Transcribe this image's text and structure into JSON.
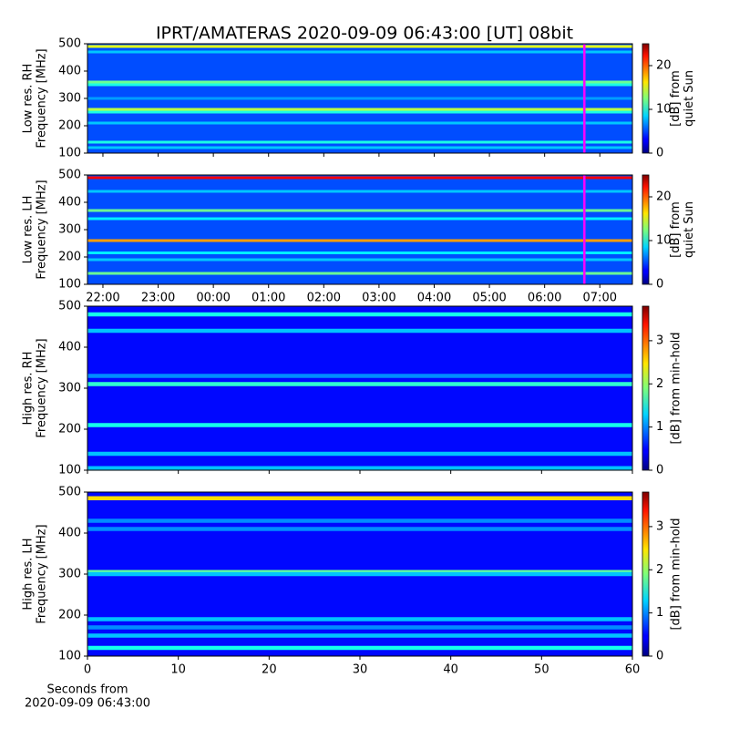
{
  "chart_data": [
    {
      "type": "heatmap",
      "title": "IPRT/AMATERAS 2020-09-09 06:43:00 [UT]   08bit",
      "ylabel": [
        "Low res. RH",
        "Frequency [MHz]"
      ],
      "ylim": [
        100,
        500
      ],
      "yticks": [
        100,
        200,
        300,
        400,
        500
      ],
      "xlim": [
        21.72,
        31.59
      ],
      "show_xticklabels": false,
      "xticks": [
        {
          "value": 22,
          "label": "22:00"
        },
        {
          "value": 23,
          "label": "23:00"
        },
        {
          "value": 24,
          "label": "00:00"
        },
        {
          "value": 25,
          "label": "01:00"
        },
        {
          "value": 26,
          "label": "02:00"
        },
        {
          "value": 27,
          "label": "03:00"
        },
        {
          "value": 28,
          "label": "04:00"
        },
        {
          "value": 29,
          "label": "05:00"
        },
        {
          "value": 30,
          "label": "06:00"
        },
        {
          "value": 31,
          "label": "07:00"
        }
      ],
      "clim": [
        0,
        25
      ],
      "cticks": [
        0,
        10,
        20
      ],
      "clabel": [
        "[dB] from",
        "quiet Sun"
      ],
      "colormap": "jet",
      "background": 5,
      "marker_x": 30.72,
      "marker_color": "#ff00ff",
      "bands": [
        {
          "freq": 490,
          "db": 15
        },
        {
          "freq": 470,
          "db": 8
        },
        {
          "freq": 360,
          "db": 12
        },
        {
          "freq": 350,
          "db": 10
        },
        {
          "freq": 300,
          "db": 7
        },
        {
          "freq": 260,
          "db": 14
        },
        {
          "freq": 250,
          "db": 10
        },
        {
          "freq": 210,
          "db": 8
        },
        {
          "freq": 140,
          "db": 10
        },
        {
          "freq": 120,
          "db": 8
        }
      ]
    },
    {
      "type": "heatmap",
      "ylabel": [
        "Low res. LH",
        "Frequency [MHz]"
      ],
      "ylim": [
        100,
        500
      ],
      "yticks": [
        100,
        200,
        300,
        400,
        500
      ],
      "xlim": [
        21.72,
        31.59
      ],
      "show_xticklabels": true,
      "xticks": [
        {
          "value": 22,
          "label": "22:00"
        },
        {
          "value": 23,
          "label": "23:00"
        },
        {
          "value": 24,
          "label": "00:00"
        },
        {
          "value": 25,
          "label": "01:00"
        },
        {
          "value": 26,
          "label": "02:00"
        },
        {
          "value": 27,
          "label": "03:00"
        },
        {
          "value": 28,
          "label": "04:00"
        },
        {
          "value": 29,
          "label": "05:00"
        },
        {
          "value": 30,
          "label": "06:00"
        },
        {
          "value": 31,
          "label": "07:00"
        }
      ],
      "clim": [
        0,
        25
      ],
      "cticks": [
        0,
        10,
        20
      ],
      "clabel": [
        "[dB] from",
        "quiet Sun"
      ],
      "colormap": "jet",
      "background": 5,
      "marker_x": 30.72,
      "marker_color": "#ff00ff",
      "bands": [
        {
          "freq": 490,
          "db": 22
        },
        {
          "freq": 440,
          "db": 8
        },
        {
          "freq": 370,
          "db": 12
        },
        {
          "freq": 340,
          "db": 9
        },
        {
          "freq": 260,
          "db": 18
        },
        {
          "freq": 215,
          "db": 9
        },
        {
          "freq": 190,
          "db": 8
        },
        {
          "freq": 140,
          "db": 12
        }
      ]
    },
    {
      "type": "heatmap",
      "ylabel": [
        "High res. RH",
        "Frequency [MHz]"
      ],
      "ylim": [
        100,
        500
      ],
      "yticks": [
        100,
        200,
        300,
        400,
        500
      ],
      "xlim": [
        0,
        60
      ],
      "xticks": [
        0,
        10,
        20,
        30,
        40,
        50,
        60
      ],
      "show_xticklabels": false,
      "clim": [
        0,
        3.8
      ],
      "cticks": [
        0,
        1,
        2,
        3
      ],
      "clabel": [
        "[dB] from min-hold"
      ],
      "colormap": "jet",
      "background": 0.5,
      "bands": [
        {
          "freq": 480,
          "db": 1.5
        },
        {
          "freq": 440,
          "db": 1.2
        },
        {
          "freq": 330,
          "db": 1.0
        },
        {
          "freq": 310,
          "db": 1.6
        },
        {
          "freq": 210,
          "db": 1.5
        },
        {
          "freq": 140,
          "db": 1.2
        },
        {
          "freq": 105,
          "db": 1.2
        }
      ]
    },
    {
      "type": "heatmap",
      "ylabel": [
        "High res. LH",
        "Frequency [MHz]"
      ],
      "ylim": [
        100,
        500
      ],
      "yticks": [
        100,
        200,
        300,
        400,
        500
      ],
      "xlim": [
        0,
        60
      ],
      "xticks": [
        0,
        10,
        20,
        30,
        40,
        50,
        60
      ],
      "show_xticklabels": true,
      "xlabel": [
        "Seconds from",
        "2020-09-09 06:43:00"
      ],
      "clim": [
        0,
        3.8
      ],
      "cticks": [
        0,
        1,
        2,
        3
      ],
      "clabel": [
        "[dB] from min-hold"
      ],
      "colormap": "jet",
      "background": 0.5,
      "bands": [
        {
          "freq": 485,
          "db": 2.5
        },
        {
          "freq": 430,
          "db": 1.0
        },
        {
          "freq": 410,
          "db": 1.0
        },
        {
          "freq": 305,
          "db": 1.8
        },
        {
          "freq": 300,
          "db": 1.2
        },
        {
          "freq": 190,
          "db": 1.2
        },
        {
          "freq": 170,
          "db": 1.0
        },
        {
          "freq": 150,
          "db": 1.2
        },
        {
          "freq": 120,
          "db": 1.5
        }
      ]
    }
  ]
}
